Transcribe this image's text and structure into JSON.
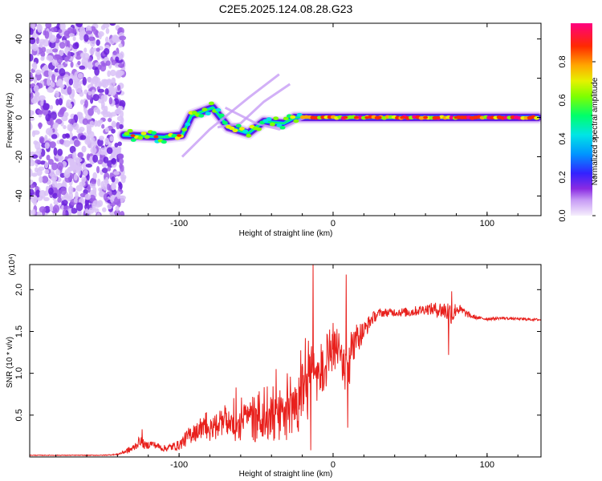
{
  "title": "C2E5.2025.124.08.28.G23",
  "chart_data": [
    {
      "type": "heatmap",
      "panel": "spectrogram",
      "xlabel": "Height of straight line (km)",
      "ylabel": "Frequency (Hz)",
      "xlim": [
        -197,
        135
      ],
      "ylim": [
        -50,
        48
      ],
      "xticks": [
        -100,
        0,
        100
      ],
      "xtick_labels": [
        "-100",
        "0",
        "100"
      ],
      "yticks": [
        -40,
        -20,
        0,
        20,
        40
      ],
      "ytick_labels": [
        "-40",
        "-20",
        "0",
        "20",
        "40"
      ],
      "colorbar": {
        "label": "Normalized spectral amplitude",
        "range": [
          0,
          1
        ],
        "ticks": [
          0.0,
          0.2,
          0.4,
          0.6,
          0.8
        ],
        "tick_labels": [
          "0.0",
          "0.2",
          "0.4",
          "0.6",
          "0.8"
        ]
      },
      "features": {
        "noise_region_x": [
          -197,
          -136
        ],
        "main_band": [
          {
            "x": -136,
            "f": -9
          },
          {
            "x": -110,
            "f": -10
          },
          {
            "x": -98,
            "f": -9
          },
          {
            "x": -92,
            "f": 1
          },
          {
            "x": -78,
            "f": 5
          },
          {
            "x": -68,
            "f": -5
          },
          {
            "x": -55,
            "f": -8
          },
          {
            "x": -45,
            "f": -2
          },
          {
            "x": -32,
            "f": -3
          },
          {
            "x": -25,
            "f": 0
          },
          {
            "x": -10,
            "f": 0
          },
          {
            "x": 0,
            "f": 0
          },
          {
            "x": 30,
            "f": 0
          },
          {
            "x": 60,
            "f": 0
          },
          {
            "x": 100,
            "f": 0
          },
          {
            "x": 133,
            "f": 0
          }
        ]
      }
    },
    {
      "type": "line",
      "panel": "snr",
      "xlabel": "Height of straight line (km)",
      "ylabel": "SNR (10 * v/v)",
      "y_multiplier_label": "(x10⁴)",
      "xlim": [
        -197,
        135
      ],
      "ylim": [
        0,
        2.3
      ],
      "xticks": [
        -100,
        0,
        100
      ],
      "xtick_labels": [
        "-100",
        "0",
        "100"
      ],
      "yticks": [
        0.5,
        1.0,
        1.5,
        2.0
      ],
      "ytick_labels": [
        "0.5",
        "1.0",
        "1.5",
        "2.0"
      ],
      "line_color": "#e8201c",
      "series": [
        {
          "name": "SNR",
          "x": [
            -197,
            -170,
            -150,
            -140,
            -130,
            -125,
            -122,
            -118,
            -110,
            -100,
            -92,
            -85,
            -78,
            -70,
            -65,
            -60,
            -55,
            -50,
            -45,
            -40,
            -35,
            -30,
            -25,
            -20,
            -16,
            -14,
            -12,
            -8,
            -4,
            0,
            4,
            8,
            10,
            12,
            15,
            20,
            25,
            30,
            40,
            50,
            60,
            70,
            75,
            78,
            80,
            85,
            90,
            95,
            100,
            110,
            120,
            135
          ],
          "y": [
            0.02,
            0.02,
            0.02,
            0.03,
            0.1,
            0.2,
            0.13,
            0.16,
            0.1,
            0.14,
            0.28,
            0.42,
            0.4,
            0.55,
            0.5,
            0.48,
            0.62,
            0.5,
            0.58,
            0.6,
            0.62,
            0.68,
            0.8,
            0.95,
            1.2,
            1.35,
            1.1,
            1.12,
            1.2,
            1.4,
            1.45,
            1.25,
            1.15,
            1.45,
            1.42,
            1.5,
            1.65,
            1.72,
            1.73,
            1.73,
            1.77,
            1.76,
            1.74,
            1.7,
            1.78,
            1.73,
            1.68,
            1.66,
            1.65,
            1.66,
            1.65,
            1.64
          ],
          "noise": [
            0.004,
            0.004,
            0.004,
            0.008,
            0.05,
            0.06,
            0.05,
            0.04,
            0.04,
            0.06,
            0.12,
            0.14,
            0.16,
            0.2,
            0.22,
            0.22,
            0.25,
            0.25,
            0.3,
            0.3,
            0.32,
            0.35,
            0.38,
            0.45,
            0.55,
            0.35,
            0.35,
            0.35,
            0.3,
            0.3,
            0.3,
            0.35,
            0.3,
            0.25,
            0.2,
            0.12,
            0.08,
            0.05,
            0.05,
            0.06,
            0.06,
            0.1,
            0.14,
            0.12,
            0.08,
            0.05,
            0.03,
            0.02,
            0.02,
            0.015,
            0.015,
            0.015
          ]
        }
      ],
      "spikes": [
        {
          "x": -13,
          "y": 2.35
        },
        {
          "x": -14.5,
          "y": 0.08
        },
        {
          "x": 8.5,
          "y": 2.18
        },
        {
          "x": 9.5,
          "y": 0.35
        },
        {
          "x": -124,
          "y": 0.33
        },
        {
          "x": -63,
          "y": 0.83
        },
        {
          "x": -37,
          "y": 1.05
        },
        {
          "x": 75,
          "y": 1.22
        },
        {
          "x": 77,
          "y": 1.98
        }
      ]
    }
  ]
}
